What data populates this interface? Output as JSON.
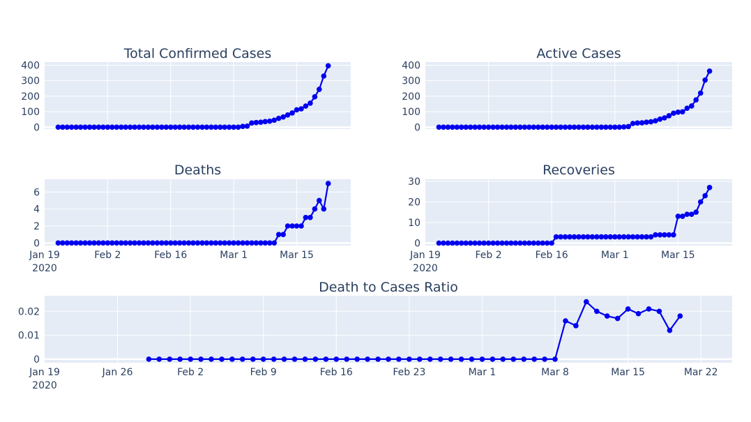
{
  "chart_data": [
    {
      "type": "line",
      "title": "Total Confirmed Cases",
      "x_start": "2020-01-22",
      "ylim": [
        -12,
        420
      ],
      "y_ticks": [
        0,
        100,
        200,
        300,
        400
      ],
      "y_tick_labels": [
        "0",
        "100",
        "200",
        "300",
        "400"
      ],
      "show_x_ticks": false,
      "line_color": "#0000ee",
      "values": [
        0,
        0,
        0,
        0,
        0,
        0,
        0,
        0,
        0,
        0,
        0,
        0,
        0,
        0,
        0,
        0,
        0,
        0,
        0,
        0,
        0,
        0,
        0,
        0,
        0,
        0,
        0,
        0,
        0,
        0,
        0,
        0,
        0,
        0,
        0,
        0,
        0,
        0,
        0,
        0,
        0,
        5,
        7,
        27,
        30,
        32,
        36,
        39,
        45,
        57,
        66,
        79,
        92,
        112,
        118,
        136,
        155,
        196,
        244,
        330,
        396
      ]
    },
    {
      "type": "line",
      "title": "Active Cases",
      "x_start": "2020-01-22",
      "ylim": [
        -12,
        420
      ],
      "y_ticks": [
        0,
        100,
        200,
        300,
        400
      ],
      "y_tick_labels": [
        "0",
        "100",
        "200",
        "300",
        "400"
      ],
      "show_x_ticks": false,
      "line_color": "#0000ee",
      "values": [
        0,
        0,
        0,
        0,
        0,
        0,
        0,
        0,
        0,
        0,
        0,
        0,
        0,
        0,
        0,
        0,
        0,
        0,
        0,
        0,
        0,
        0,
        0,
        0,
        0,
        0,
        0,
        0,
        0,
        0,
        0,
        0,
        0,
        0,
        0,
        0,
        0,
        0,
        0,
        0,
        0,
        2,
        4,
        24,
        27,
        28,
        32,
        35,
        41,
        52,
        60,
        74,
        90,
        97,
        99,
        122,
        137,
        176,
        220,
        304,
        362
      ]
    },
    {
      "type": "line",
      "title": "Deaths",
      "x_start": "2020-01-22",
      "ylim": [
        -0.3,
        7.5
      ],
      "y_ticks": [
        0,
        2,
        4,
        6
      ],
      "y_tick_labels": [
        "0",
        "2",
        "4",
        "6"
      ],
      "show_x_ticks": true,
      "x_ticks": [
        "2020-01-19",
        "2020-02-02",
        "2020-02-16",
        "2020-03-01",
        "2020-03-15"
      ],
      "x_tick_labels": [
        "Jan 19",
        "Feb 2",
        "Feb 16",
        "Mar 1",
        "Mar 15"
      ],
      "x_tick_sublabel": "2020",
      "line_color": "#0000ee",
      "values": [
        0,
        0,
        0,
        0,
        0,
        0,
        0,
        0,
        0,
        0,
        0,
        0,
        0,
        0,
        0,
        0,
        0,
        0,
        0,
        0,
        0,
        0,
        0,
        0,
        0,
        0,
        0,
        0,
        0,
        0,
        0,
        0,
        0,
        0,
        0,
        0,
        0,
        0,
        0,
        0,
        0,
        0,
        0,
        0,
        0,
        0,
        0,
        0,
        0,
        1,
        1,
        2,
        2,
        2,
        2,
        3,
        3,
        4,
        5,
        4,
        7
      ]
    },
    {
      "type": "line",
      "title": "Recoveries",
      "x_start": "2020-01-22",
      "ylim": [
        -1.2,
        31
      ],
      "y_ticks": [
        0,
        10,
        20,
        30
      ],
      "y_tick_labels": [
        "0",
        "10",
        "20",
        "30"
      ],
      "show_x_ticks": true,
      "x_ticks": [
        "2020-01-19",
        "2020-02-02",
        "2020-02-16",
        "2020-03-01",
        "2020-03-15"
      ],
      "x_tick_labels": [
        "Jan 19",
        "Feb 2",
        "Feb 16",
        "Mar 1",
        "Mar 15"
      ],
      "x_tick_sublabel": "2020",
      "line_color": "#0000ee",
      "values": [
        0,
        0,
        0,
        0,
        0,
        0,
        0,
        0,
        0,
        0,
        0,
        0,
        0,
        0,
        0,
        0,
        0,
        0,
        0,
        0,
        0,
        0,
        0,
        0,
        0,
        0,
        3,
        3,
        3,
        3,
        3,
        3,
        3,
        3,
        3,
        3,
        3,
        3,
        3,
        3,
        3,
        3,
        3,
        3,
        3,
        3,
        3,
        3,
        4,
        4,
        4,
        4,
        4,
        13,
        13,
        14,
        14,
        15,
        20,
        23,
        27
      ]
    },
    {
      "type": "line",
      "title": "Death to Cases Ratio",
      "x_start": "2020-01-22",
      "ylim": [
        -0.0015,
        0.0265
      ],
      "y_ticks": [
        0,
        0.01,
        0.02
      ],
      "y_tick_labels": [
        "0",
        "0.01",
        "0.02"
      ],
      "show_x_ticks": true,
      "x_ticks": [
        "2020-01-19",
        "2020-01-26",
        "2020-02-02",
        "2020-02-09",
        "2020-02-16",
        "2020-02-23",
        "2020-03-01",
        "2020-03-08",
        "2020-03-15",
        "2020-03-22"
      ],
      "x_tick_labels": [
        "Jan 19",
        "Jan 26",
        "Feb 2",
        "Feb 9",
        "Feb 16",
        "Feb 23",
        "Mar 1",
        "Mar 8",
        "Mar 15",
        "Mar 22"
      ],
      "x_tick_sublabel": "2020",
      "line_color": "#0000ee",
      "x_start_ratio": "2020-01-29",
      "values": [
        0,
        0,
        0,
        0,
        0,
        0,
        0,
        0,
        0,
        0,
        0,
        0,
        0,
        0,
        0,
        0,
        0,
        0,
        0,
        0,
        0,
        0,
        0,
        0,
        0,
        0,
        0,
        0,
        0,
        0,
        0,
        0,
        0,
        0,
        0,
        0,
        0,
        0,
        0,
        0,
        0.016,
        0.014,
        0.024,
        0.02,
        0.018,
        0.017,
        0.021,
        0.019,
        0.021,
        0.02,
        0.012,
        0.018
      ]
    }
  ]
}
